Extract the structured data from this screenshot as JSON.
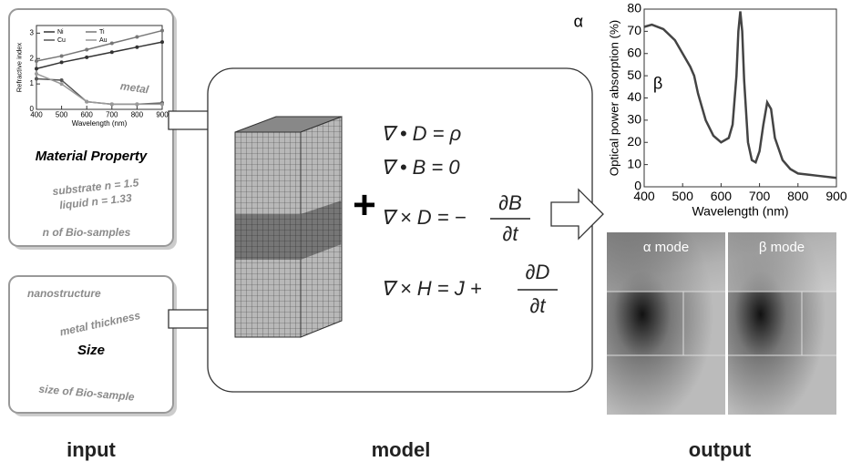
{
  "input": {
    "label": "input",
    "material_panel": {
      "chart": {
        "type": "line",
        "ylabel": "Refractive index",
        "xlabel": "Wavelength (nm)",
        "x": [
          400,
          500,
          600,
          700,
          800,
          900
        ],
        "series": [
          {
            "name": "Ni",
            "color": "#333333",
            "values": [
              1.6,
              1.85,
              2.05,
              2.25,
              2.45,
              2.65
            ]
          },
          {
            "name": "Ti",
            "color": "#777777",
            "values": [
              1.9,
              2.1,
              2.35,
              2.6,
              2.85,
              3.1
            ]
          },
          {
            "name": "Cu",
            "color": "#555555",
            "values": [
              1.2,
              1.15,
              0.3,
              0.2,
              0.2,
              0.25
            ]
          },
          {
            "name": "Au",
            "color": "#999999",
            "values": [
              1.4,
              1.0,
              0.3,
              0.2,
              0.2,
              0.2
            ]
          }
        ],
        "xlim": [
          400,
          900
        ],
        "ylim": [
          0,
          3.3
        ],
        "xticks": [
          400,
          500,
          600,
          700,
          800,
          900
        ],
        "yticks": [
          0,
          1,
          2,
          3
        ],
        "annotation": "metal"
      },
      "title": "Material Property",
      "substrate": "substrate n = 1.5",
      "liquid": "liquid n = 1.33",
      "bio": "n of Bio-samples"
    },
    "size_panel": {
      "nanostructure": "nanostructure",
      "thickness": "metal thickness",
      "title": "Size",
      "bio_size": "size of Bio-sample"
    }
  },
  "model": {
    "label": "model",
    "plus": "+",
    "equations": {
      "gauss_d": "∇ • D = ρ",
      "gauss_b": "∇ • B = 0",
      "faraday": {
        "lhs": "∇ × D = −",
        "num": "∂B",
        "den": "∂t"
      },
      "ampere": {
        "lhs": "∇ × H = J +",
        "num": "∂D",
        "den": "∂t"
      }
    }
  },
  "output": {
    "label": "output",
    "chart": {
      "type": "line",
      "ylabel": "Optical power absorption (%)",
      "xlabel": "Wavelength (nm)",
      "x": [
        400,
        420,
        450,
        480,
        500,
        520,
        530,
        540,
        560,
        580,
        600,
        620,
        630,
        640,
        645,
        650,
        655,
        660,
        670,
        680,
        690,
        700,
        710,
        720,
        730,
        740,
        760,
        780,
        800,
        850,
        900
      ],
      "series": [
        {
          "color": "#444444",
          "values": [
            72,
            73,
            71,
            66,
            60,
            54,
            50,
            42,
            30,
            23,
            20,
            22,
            28,
            50,
            70,
            79,
            70,
            48,
            20,
            12,
            11,
            16,
            28,
            38,
            35,
            22,
            12,
            8,
            6,
            5,
            4
          ]
        }
      ],
      "xlim": [
        400,
        900
      ],
      "ylim": [
        0,
        80
      ],
      "xticks": [
        400,
        500,
        600,
        700,
        800,
        900
      ],
      "yticks": [
        0,
        10,
        20,
        30,
        40,
        50,
        60,
        70,
        80
      ],
      "annotations": [
        "α",
        "β"
      ]
    },
    "modes": [
      "α mode",
      "β mode"
    ]
  }
}
